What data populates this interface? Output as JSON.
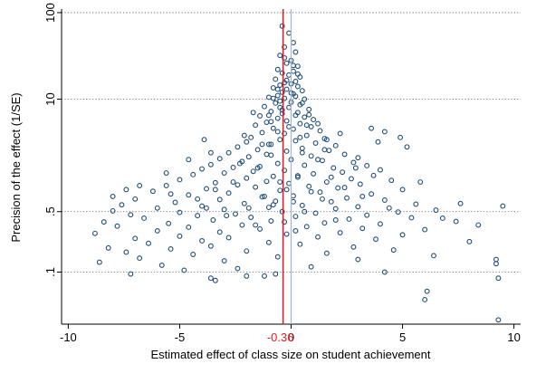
{
  "chart_data": {
    "type": "scatter",
    "title": "",
    "xlabel": "Estimated effect of class size on student achievement",
    "ylabel": "Precision of the effect (1/SE)",
    "xlim": [
      -10.3,
      10.3
    ],
    "ylim": [
      0.025,
      110
    ],
    "y_scale": "log",
    "x_ticks": [
      -10,
      -5,
      0,
      5,
      10
    ],
    "x_tick_labels": [
      "-10",
      "-5",
      "0",
      "5",
      "10"
    ],
    "y_ticks": [
      100,
      10,
      0.5,
      0.1
    ],
    "y_tick_labels": [
      "100",
      "10",
      ".5",
      ".1"
    ],
    "grid": "horizontal dotted at y ticks",
    "marker": {
      "shape": "hollow circle",
      "color": "#1f4e79"
    },
    "reference_lines": [
      {
        "x": -0.36,
        "label": "-0.36",
        "color": "#e0202a"
      },
      {
        "x": 0,
        "label": "",
        "color": "#a8b8cc"
      }
    ],
    "points": [
      [
        -0.4,
        70
      ],
      [
        -0.1,
        58
      ],
      [
        0.1,
        45
      ],
      [
        -0.3,
        40
      ],
      [
        0.2,
        35
      ],
      [
        -0.5,
        32
      ],
      [
        0,
        28
      ],
      [
        -0.2,
        26
      ],
      [
        0.3,
        24
      ],
      [
        -0.6,
        22
      ],
      [
        0.1,
        21
      ],
      [
        -0.4,
        20
      ],
      [
        -0.1,
        19
      ],
      [
        0.4,
        18
      ],
      [
        -0.7,
        17
      ],
      [
        0.2,
        16
      ],
      [
        -0.3,
        15.5
      ],
      [
        0,
        15
      ],
      [
        -0.5,
        14.5
      ],
      [
        0.3,
        14
      ],
      [
        -0.8,
        13.5
      ],
      [
        -0.2,
        13
      ],
      [
        0.5,
        12.5
      ],
      [
        -0.4,
        12
      ],
      [
        0.1,
        11.5
      ],
      [
        -0.6,
        11
      ],
      [
        0.2,
        10.8
      ],
      [
        -1.0,
        10.5
      ],
      [
        -0.3,
        10.2
      ],
      [
        0.6,
        10
      ],
      [
        -0.5,
        9.5
      ],
      [
        0,
        9.2
      ],
      [
        -0.7,
        9
      ],
      [
        0.4,
        8.6
      ],
      [
        -1.2,
        8.2
      ],
      [
        -0.1,
        8
      ],
      [
        0.8,
        7.6
      ],
      [
        -0.9,
        7.2
      ],
      [
        0.3,
        7
      ],
      [
        -0.4,
        6.8
      ],
      [
        -1.4,
        6.4
      ],
      [
        0.6,
        6.2
      ],
      [
        -0.6,
        6
      ],
      [
        1.0,
        5.8
      ],
      [
        -0.2,
        5.6
      ],
      [
        -1.1,
        5.4
      ],
      [
        0.4,
        5.2
      ],
      [
        -1.6,
        5
      ],
      [
        0.9,
        4.8
      ],
      [
        -0.8,
        4.6
      ],
      [
        0.1,
        4.5
      ],
      [
        1.3,
        4.3
      ],
      [
        -1.3,
        4.1
      ],
      [
        -0.3,
        4
      ],
      [
        0.7,
        3.8
      ],
      [
        -1.8,
        3.6
      ],
      [
        1.5,
        3.5
      ],
      [
        -0.5,
        3.4
      ],
      [
        0.2,
        3.3
      ],
      [
        -2.0,
        3.2
      ],
      [
        1.1,
        3.1
      ],
      [
        -1.0,
        3
      ],
      [
        2.0,
        2.9
      ],
      [
        -2.4,
        2.8
      ],
      [
        0.5,
        2.7
      ],
      [
        -1.5,
        2.6
      ],
      [
        1.7,
        2.55
      ],
      [
        -0.2,
        2.5
      ],
      [
        -2.8,
        2.4
      ],
      [
        2.4,
        2.3
      ],
      [
        -0.9,
        2.25
      ],
      [
        0.9,
        2.2
      ],
      [
        -1.9,
        2.15
      ],
      [
        3.0,
        2.1
      ],
      [
        -3.2,
        2.05
      ],
      [
        0,
        2
      ],
      [
        1.4,
        1.95
      ],
      [
        -2.2,
        1.9
      ],
      [
        2.8,
        1.85
      ],
      [
        -0.6,
        1.8
      ],
      [
        -3.6,
        1.75
      ],
      [
        0.6,
        1.72
      ],
      [
        3.4,
        1.7
      ],
      [
        -1.4,
        1.66
      ],
      [
        -2.6,
        1.62
      ],
      [
        1.9,
        1.6
      ],
      [
        -4.0,
        1.56
      ],
      [
        4.0,
        1.52
      ],
      [
        -0.3,
        1.5
      ],
      [
        -1.7,
        1.46
      ],
      [
        2.3,
        1.43
      ],
      [
        -3.0,
        1.4
      ],
      [
        1.0,
        1.37
      ],
      [
        -4.4,
        1.34
      ],
      [
        3.7,
        1.31
      ],
      [
        -0.8,
        1.28
      ],
      [
        0.3,
        1.25
      ],
      [
        -2.0,
        1.22
      ],
      [
        2.7,
        1.2
      ],
      [
        -5.0,
        1.17
      ],
      [
        4.5,
        1.15
      ],
      [
        -1.1,
        1.12
      ],
      [
        1.6,
        1.1
      ],
      [
        -3.4,
        1.08
      ],
      [
        -0.1,
        1.06
      ],
      [
        3.1,
        1.04
      ],
      [
        -2.4,
        1.02
      ],
      [
        -5.6,
        1
      ],
      [
        0.8,
        0.98
      ],
      [
        -1.6,
        0.96
      ],
      [
        2.1,
        0.94
      ],
      [
        -3.8,
        0.92
      ],
      [
        5.0,
        0.9
      ],
      [
        -0.5,
        0.88
      ],
      [
        -6.2,
        0.86
      ],
      [
        1.3,
        0.84
      ],
      [
        -2.8,
        0.82
      ],
      [
        3.6,
        0.8
      ],
      [
        -4.6,
        0.78
      ],
      [
        0.1,
        0.76
      ],
      [
        -1.3,
        0.74
      ],
      [
        2.5,
        0.72
      ],
      [
        -7.0,
        0.7
      ],
      [
        -3.2,
        0.69
      ],
      [
        4.2,
        0.68
      ],
      [
        -0.7,
        0.66
      ],
      [
        1.8,
        0.65
      ],
      [
        -5.2,
        0.64
      ],
      [
        -2.1,
        0.62
      ],
      [
        5.6,
        0.61
      ],
      [
        -7.6,
        0.6
      ],
      [
        0.5,
        0.59
      ],
      [
        -4.0,
        0.58
      ],
      [
        3.0,
        0.57
      ],
      [
        -1.0,
        0.56
      ],
      [
        -6.0,
        0.55
      ],
      [
        2.0,
        0.54
      ],
      [
        -3.0,
        0.53
      ],
      [
        6.5,
        0.52
      ],
      [
        -8.0,
        0.51
      ],
      [
        -0.4,
        0.5
      ],
      [
        4.8,
        0.495
      ],
      [
        -5.0,
        0.49
      ],
      [
        1.1,
        0.48
      ],
      [
        -2.5,
        0.47
      ],
      [
        -7.2,
        0.46
      ],
      [
        3.4,
        0.455
      ],
      [
        -4.2,
        0.45
      ],
      [
        0.2,
        0.44
      ],
      [
        -1.8,
        0.43
      ],
      [
        5.4,
        0.425
      ],
      [
        -6.6,
        0.42
      ],
      [
        2.6,
        0.41
      ],
      [
        -3.5,
        0.4
      ],
      [
        -0.9,
        0.39
      ],
      [
        7.4,
        0.385
      ],
      [
        -8.4,
        0.38
      ],
      [
        1.5,
        0.37
      ],
      [
        -5.5,
        0.365
      ],
      [
        4.0,
        0.36
      ],
      [
        -2.2,
        0.35
      ],
      [
        -7.8,
        0.34
      ],
      [
        0.7,
        0.335
      ],
      [
        -4.6,
        0.33
      ],
      [
        3.2,
        0.32
      ],
      [
        -1.4,
        0.315
      ],
      [
        6.0,
        0.31
      ],
      [
        -6.0,
        0.3
      ],
      [
        -3.2,
        0.29
      ],
      [
        2.2,
        0.285
      ],
      [
        -8.8,
        0.28
      ],
      [
        -0.2,
        0.275
      ],
      [
        5.0,
        0.27
      ],
      [
        -5.0,
        0.26
      ],
      [
        1.2,
        0.255
      ],
      [
        -2.8,
        0.25
      ],
      [
        -7.0,
        0.245
      ],
      [
        3.8,
        0.24
      ],
      [
        -4.0,
        0.23
      ],
      [
        8.0,
        0.225
      ],
      [
        -1.0,
        0.22
      ],
      [
        -6.4,
        0.215
      ],
      [
        0.4,
        0.21
      ],
      [
        -3.6,
        0.2
      ],
      [
        2.8,
        0.195
      ],
      [
        -8.2,
        0.19
      ],
      [
        -5.4,
        0.185
      ],
      [
        4.6,
        0.18
      ],
      [
        -2.0,
        0.175
      ],
      [
        -7.4,
        0.17
      ],
      [
        1.6,
        0.165
      ],
      [
        -4.4,
        0.16
      ],
      [
        6.4,
        0.155
      ],
      [
        -0.6,
        0.15
      ],
      [
        -6.8,
        0.145
      ],
      [
        3.0,
        0.14
      ],
      [
        -3.0,
        0.135
      ],
      [
        -8.6,
        0.13
      ],
      [
        9.2,
        0.125
      ],
      [
        -5.8,
        0.12
      ],
      [
        0.9,
        0.115
      ],
      [
        -2.4,
        0.11
      ],
      [
        -4.8,
        0.105
      ],
      [
        4.2,
        0.1
      ],
      [
        -7.2,
        0.095
      ],
      [
        -1.2,
        0.09
      ],
      [
        9.3,
        0.085
      ],
      [
        -3.4,
        0.08
      ],
      [
        6.1,
        0.06
      ],
      [
        6.0,
        0.048
      ],
      [
        9.3,
        0.028
      ],
      [
        9.5,
        0.58
      ],
      [
        9.2,
        0.14
      ],
      [
        -3.6,
        0.085
      ],
      [
        -2.0,
        0.09
      ],
      [
        -0.7,
        0.095
      ],
      [
        0.5,
        2.4
      ],
      [
        -0.9,
        3.0
      ],
      [
        1.2,
        2.0
      ],
      [
        -1.5,
        1.6
      ],
      [
        0.3,
        1.3
      ],
      [
        -0.5,
        1.1
      ],
      [
        1.8,
        1.25
      ],
      [
        -2.6,
        1.1
      ],
      [
        -0.2,
        0.9
      ],
      [
        0.9,
        0.85
      ],
      [
        -1.2,
        0.75
      ],
      [
        2.4,
        0.95
      ],
      [
        -3.4,
        0.9
      ],
      [
        0.1,
        0.65
      ],
      [
        -0.8,
        0.6
      ],
      [
        1.4,
        0.7
      ],
      [
        -1.9,
        0.55
      ],
      [
        3.2,
        0.75
      ],
      [
        -4.2,
        0.7
      ],
      [
        0.6,
        0.5
      ],
      [
        -2.9,
        0.45
      ],
      [
        2.0,
        0.4
      ],
      [
        -0.3,
        0.38
      ],
      [
        -1.6,
        0.35
      ],
      [
        0.2,
        0.3
      ],
      [
        -3.8,
        0.55
      ],
      [
        4.4,
        0.55
      ],
      [
        -5.4,
        0.8
      ],
      [
        2.9,
        1.6
      ],
      [
        -2.3,
        1.8
      ],
      [
        1.5,
        2.6
      ],
      [
        -1.1,
        2.3
      ],
      [
        0.4,
        3.6
      ],
      [
        -0.6,
        4.2
      ],
      [
        0.7,
        5.0
      ],
      [
        -0.9,
        5.5
      ],
      [
        0.2,
        6.5
      ],
      [
        -0.4,
        7.5
      ],
      [
        0.5,
        9.0
      ],
      [
        -0.8,
        10.2
      ],
      [
        0.0,
        11.8
      ],
      [
        -0.2,
        16.5
      ],
      [
        0.1,
        24.5
      ],
      [
        -0.3,
        30.0
      ],
      [
        0.3,
        19.5
      ],
      [
        -0.6,
        13.0
      ],
      [
        -1.3,
        3.0
      ],
      [
        1.6,
        3.4
      ],
      [
        -2.1,
        3.8
      ],
      [
        2.2,
        4.0
      ],
      [
        -0.1,
        4.8
      ],
      [
        -1.0,
        6.5
      ],
      [
        0.8,
        6.6
      ],
      [
        -1.7,
        7.0
      ],
      [
        1.2,
        5.2
      ],
      [
        -0.5,
        8.0
      ],
      [
        3.6,
        4.6
      ],
      [
        4.2,
        4.2
      ],
      [
        4.9,
        3.6
      ],
      [
        -3.6,
        2.4
      ],
      [
        -4.6,
        2.0
      ],
      [
        -5.6,
        1.4
      ],
      [
        -6.8,
        1.0
      ],
      [
        -7.4,
        0.9
      ],
      [
        -8.0,
        0.75
      ],
      [
        6.8,
        0.42
      ],
      [
        7.6,
        0.62
      ],
      [
        8.4,
        0.35
      ],
      [
        5.8,
        1.1
      ],
      [
        5.2,
        2.8
      ],
      [
        3.9,
        3.2
      ],
      [
        -3.9,
        3.4
      ]
    ]
  }
}
